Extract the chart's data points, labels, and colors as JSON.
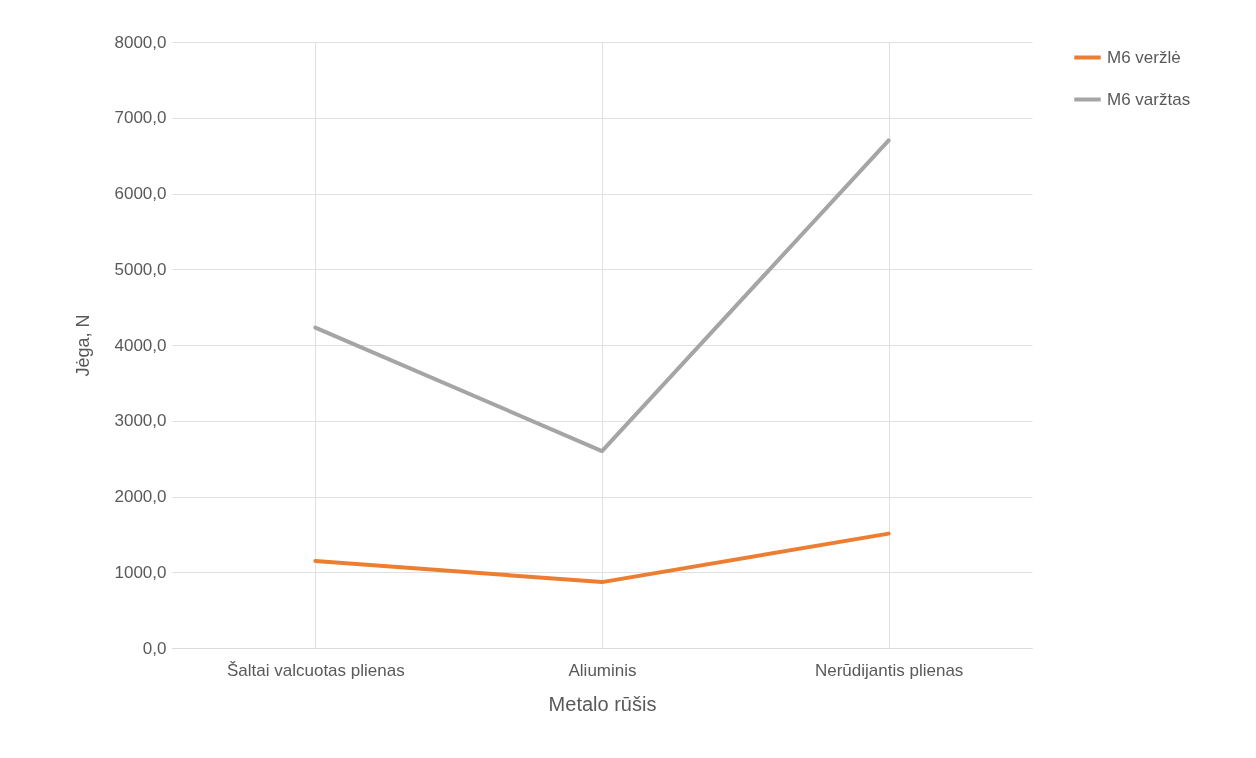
{
  "chart_data": {
    "type": "line",
    "xlabel": "Metalo rūšis",
    "ylabel": "Jėga, N",
    "categories": [
      "Šaltai valcuotas plienas",
      "Aliuminis",
      "Nerūdijantis plienas"
    ],
    "series": [
      {
        "name": "M6 veržlė",
        "color": "#ed7d31",
        "values": [
          1150,
          870,
          1510
        ]
      },
      {
        "name": "M6 varžtas",
        "color": "#a5a5a5",
        "values": [
          4230,
          2600,
          6700
        ]
      }
    ],
    "ylim": [
      0,
      8000
    ],
    "yticks": [
      {
        "value": 0,
        "label": "0,0"
      },
      {
        "value": 1000,
        "label": "1000,0"
      },
      {
        "value": 2000,
        "label": "2000,0"
      },
      {
        "value": 3000,
        "label": "3000,0"
      },
      {
        "value": 4000,
        "label": "4000,0"
      },
      {
        "value": 5000,
        "label": "5000,0"
      },
      {
        "value": 6000,
        "label": "6000,0"
      },
      {
        "value": 7000,
        "label": "7000,0"
      },
      {
        "value": 8000,
        "label": "8000,0"
      }
    ],
    "grid": true,
    "legend": "right",
    "marker": "none",
    "line_style": "solid"
  }
}
